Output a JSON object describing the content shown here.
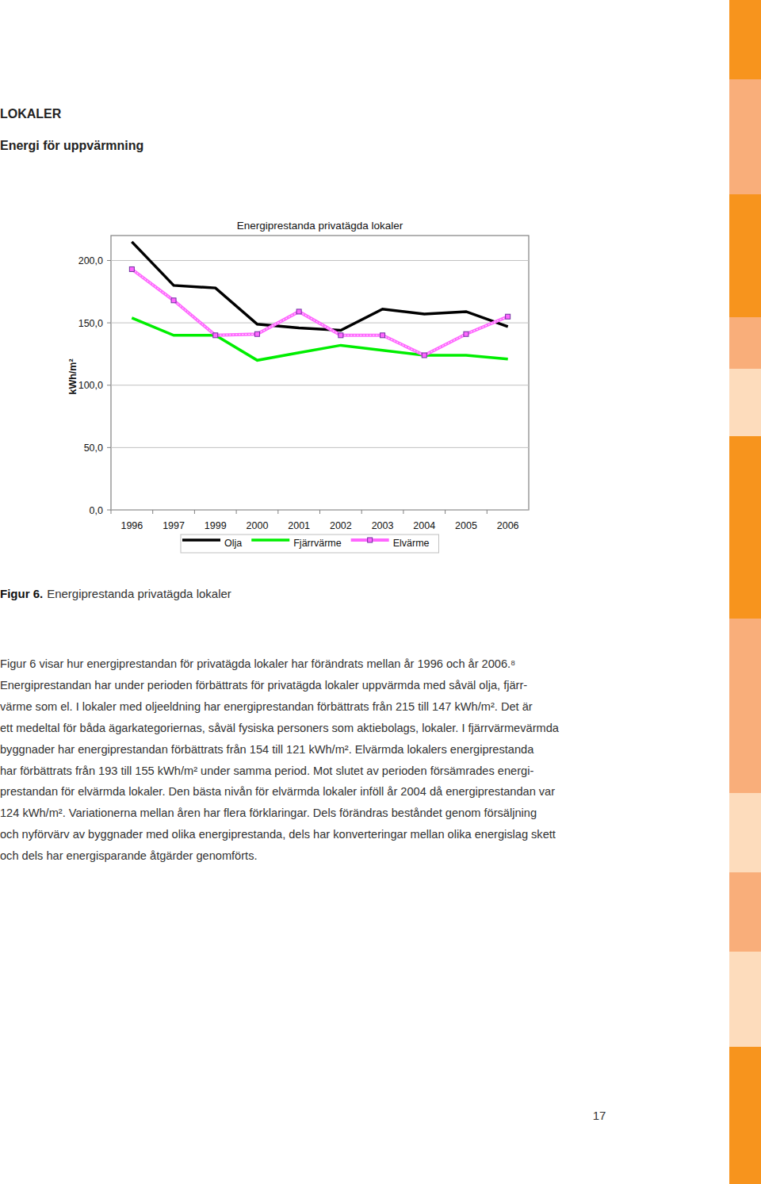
{
  "header": {
    "section": "LOKALER",
    "heading": "Energi för uppvärmning"
  },
  "chart_data": {
    "type": "line",
    "title": "Energiprestanda privatägda lokaler",
    "y_label": "kWh/m²",
    "categories": [
      "1996",
      "1997",
      "1999",
      "2000",
      "2001",
      "2002",
      "2003",
      "2004",
      "2005",
      "2006"
    ],
    "series": [
      {
        "name": "Olja",
        "color": "#000000",
        "marker": "none",
        "values": [
          215,
          180,
          178,
          149,
          146,
          144,
          161,
          157,
          159,
          147
        ]
      },
      {
        "name": "Fjärrvärme",
        "color": "#00ee00",
        "marker": "none",
        "values": [
          154,
          140,
          140,
          120,
          126,
          132,
          128,
          124,
          124,
          121
        ]
      },
      {
        "name": "Elvärme",
        "color": "#ff66ff",
        "marker": "square",
        "values": [
          193,
          168,
          140,
          141,
          159,
          140,
          140,
          124,
          141,
          155
        ]
      }
    ],
    "ylim": [
      0,
      220
    ],
    "yticks": [
      {
        "value": 0,
        "label": "0,0"
      },
      {
        "value": 50,
        "label": "50,0"
      },
      {
        "value": 100,
        "label": "100,0"
      },
      {
        "value": 150,
        "label": "150,0"
      },
      {
        "value": 200,
        "label": "200,0"
      }
    ],
    "grid": true,
    "legend": "bottom"
  },
  "caption": {
    "label": "Figur 6.",
    "text": "Energiprestanda privatägda lokaler"
  },
  "body": {
    "lines": [
      "Figur 6 visar hur energiprestandan för privatägda lokaler har förändrats mellan år 1996 och år 2006.⁸",
      "Energiprestandan har under perioden förbättrats för privatägda lokaler uppvärmda med såväl olja, fjärr-",
      "värme som el. I lokaler med oljeeldning har energiprestandan förbättrats från 215 till 147 kWh/m². Det är",
      "ett medeltal för båda ägarkategoriernas, såväl fysiska personers som aktiebolags, lokaler. I fjärrvärmevärmda",
      "byggnader har energiprestandan förbättrats från 154 till 121 kWh/m². Elvärmda lokalers energiprestanda",
      "har förbättrats från 193 till 155 kWh/m² under samma period. Mot slutet av perioden försämrades energi-",
      "prestandan för elvärmda lokaler. Den bästa nivån för elvärmda lokaler inföll år 2004 då energiprestandan var",
      "124 kWh/m². Variationerna mellan åren har flera förklaringar. Dels förändras beståndet genom försäljning",
      "och nyförvärv av byggnader med olika energiprestanda, dels har konverteringar mellan olika energislag skett",
      "och dels har energisparande åtgärder genomförts."
    ]
  },
  "footer": {
    "page_number": "17"
  }
}
